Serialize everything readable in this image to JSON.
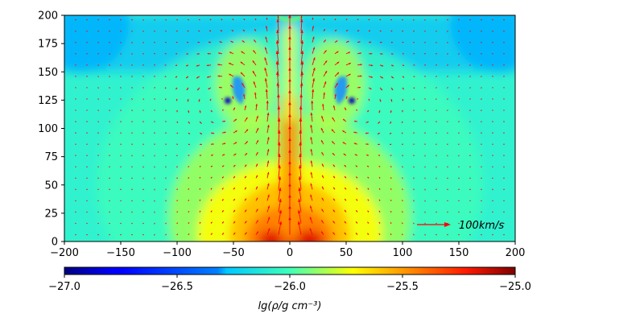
{
  "chart_data": {
    "type": "heatmap",
    "title": "",
    "description_of_field": "gas density map with velocity vectors",
    "x_ticks": [
      -200,
      -150,
      -100,
      -50,
      0,
      50,
      100,
      150,
      200
    ],
    "x_tick_labels": [
      "−200",
      "−150",
      "−100",
      "−50",
      "0",
      "50",
      "100",
      "150",
      "200"
    ],
    "y_ticks": [
      0,
      25,
      50,
      75,
      100,
      125,
      150,
      175,
      200
    ],
    "y_tick_labels": [
      "0",
      "25",
      "50",
      "75",
      "100",
      "125",
      "150",
      "175",
      "200"
    ],
    "xlim": [
      -200,
      200
    ],
    "ylim": [
      0,
      200
    ],
    "colorbar": {
      "label": "lg(ρ/g cm⁻³)",
      "range": [
        -27.0,
        -25.0
      ],
      "ticks": [
        -27.0,
        -26.5,
        -26.0,
        -25.5,
        -25.0
      ],
      "tick_labels": [
        "−27.0",
        "−26.5",
        "−26.0",
        "−25.5",
        "−25.0"
      ],
      "colormap": "jet",
      "placement": "bottom"
    },
    "vector_key": {
      "label": "100km/s",
      "speed": 100,
      "color": "#ff0000"
    },
    "vector_color": "#ff0000",
    "jet_axis_x": 0,
    "vortices": [
      {
        "x": -55,
        "y": 125
      },
      {
        "x": 55,
        "y": 125
      }
    ]
  }
}
